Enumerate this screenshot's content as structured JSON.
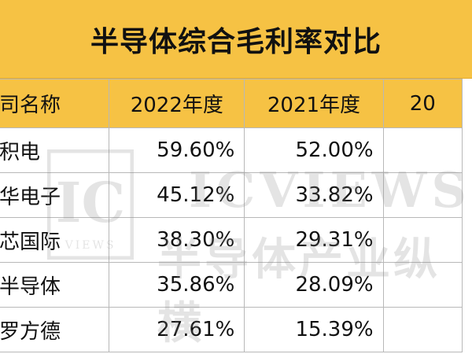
{
  "title": "半导体综合毛利率对比",
  "table": {
    "headers": [
      "司名称",
      "2022年度",
      "2021年度",
      "20"
    ],
    "rows": [
      {
        "name": "积电",
        "y2022": "59.60%",
        "y2021": "52.00%",
        "y2020": ""
      },
      {
        "name": "华电子",
        "y2022": "45.12%",
        "y2021": "33.82%",
        "y2020": ""
      },
      {
        "name": "芯国际",
        "y2022": "38.30%",
        "y2021": "29.31%",
        "y2020": ""
      },
      {
        "name": "半导体",
        "y2022": "35.86%",
        "y2021": "28.09%",
        "y2020": ""
      },
      {
        "name": "罗方德",
        "y2022": "27.61%",
        "y2021": "15.39%",
        "y2020": ""
      }
    ]
  },
  "watermark": {
    "brand": "ICVIEWS",
    "slogan": "半导体产业纵横",
    "logo_letters": "IC",
    "logo_sub": "VIEWS"
  },
  "colors": {
    "header_bg": "#f6c244",
    "grid_line": "#b8b8b8",
    "text": "#111111"
  }
}
